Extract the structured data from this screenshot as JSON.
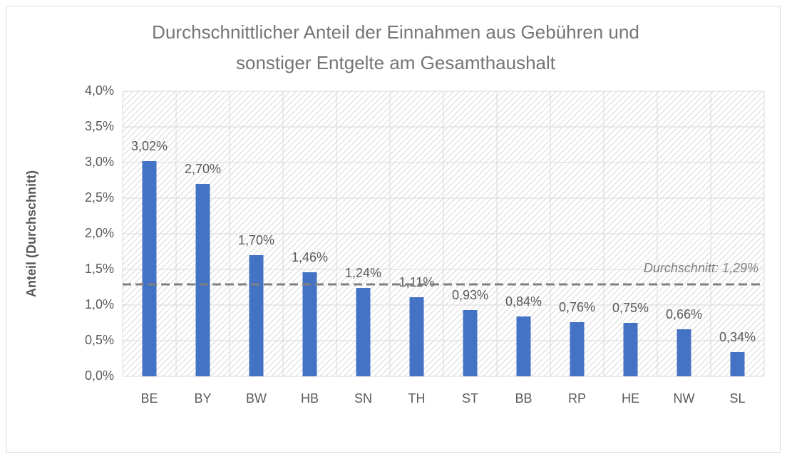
{
  "chart_data": {
    "type": "bar",
    "title": [
      "Durchschnittlicher Anteil der Einnahmen aus Gebühren und",
      "sonstiger Entgelte am Gesamthaushalt"
    ],
    "y_label": "Anteil (Durchschnitt)",
    "categories": [
      "BE",
      "BY",
      "BW",
      "HB",
      "SN",
      "TH",
      "ST",
      "BB",
      "RP",
      "HE",
      "NW",
      "SL"
    ],
    "values": [
      3.02,
      2.7,
      1.7,
      1.46,
      1.24,
      1.11,
      0.93,
      0.84,
      0.76,
      0.75,
      0.66,
      0.34
    ],
    "value_labels": [
      "3,02%",
      "2,70%",
      "1,70%",
      "1,46%",
      "1,24%",
      "1,11%",
      "0,93%",
      "0,84%",
      "0,76%",
      "0,75%",
      "0,66%",
      "0,34%"
    ],
    "color": "#4472c4",
    "ylim": [
      0,
      4
    ],
    "yticks": [
      {
        "value": 0,
        "label": "0,0%"
      },
      {
        "value": 0.5,
        "label": "0,5%"
      },
      {
        "value": 1,
        "label": "1,0%"
      },
      {
        "value": 1.5,
        "label": "1,5%"
      },
      {
        "value": 2,
        "label": "2,0%"
      },
      {
        "value": 2.5,
        "label": "2,5%"
      },
      {
        "value": 3,
        "label": "3,0%"
      },
      {
        "value": 3.5,
        "label": "3,5%"
      },
      {
        "value": 4,
        "label": "4,0%"
      }
    ],
    "grid": true,
    "reference_line": {
      "value": 1.29,
      "label": "Durchschnitt: 1,29%",
      "color": "#808080"
    }
  }
}
